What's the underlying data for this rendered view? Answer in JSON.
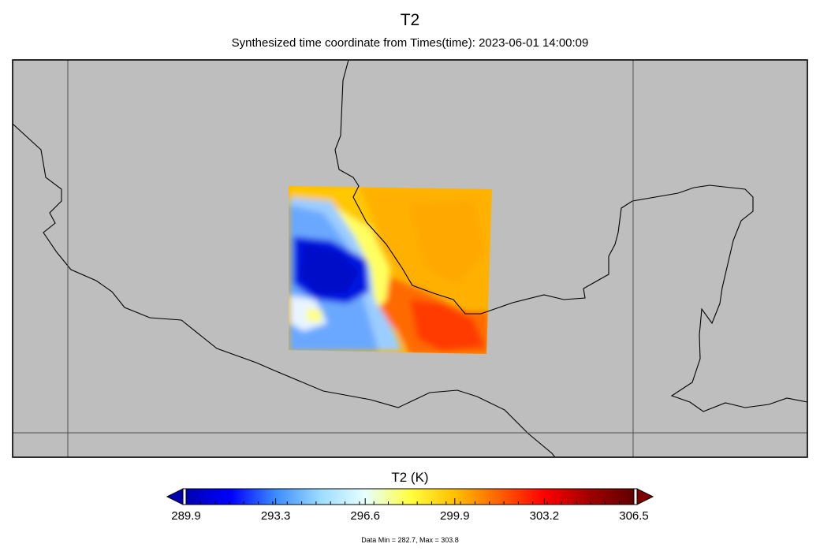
{
  "figure": {
    "title": "T2",
    "subtitle": "Synthesized time coordinate from Times(time): 2023-06-01 14:00:09"
  },
  "map": {
    "background_color": "#bebebe",
    "boundary_color": "#000000",
    "gridline_color": "#505050",
    "field": "T2",
    "units": "K"
  },
  "colorbar": {
    "label": "T2 (K)",
    "min": 289.9,
    "max": 306.5,
    "ticks": [
      "289.9",
      "293.3",
      "296.6",
      "299.9",
      "303.2",
      "306.5"
    ],
    "colormap": [
      "#0000b0",
      "#0000ff",
      "#3c8cff",
      "#9cdcff",
      "#e6ffff",
      "#ffff40",
      "#ffc000",
      "#ff6000",
      "#ff0000",
      "#a00000",
      "#600000"
    ],
    "extend_low_color": "#0000b0",
    "extend_high_color": "#800000"
  },
  "stats": {
    "text": "Data Min = 282.7, Max = 303.8"
  }
}
